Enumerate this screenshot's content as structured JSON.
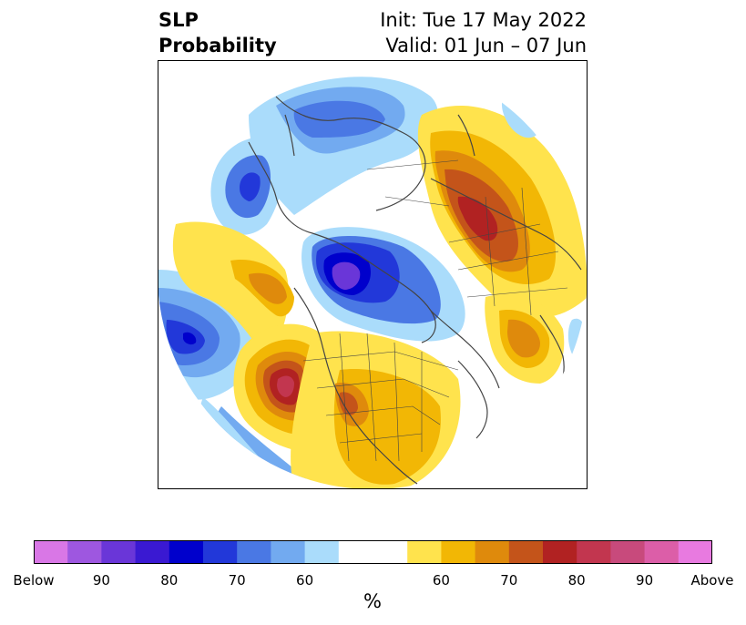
{
  "title": {
    "left_line1": "SLP",
    "left_line2": "Probability",
    "right_line1": "Init: Tue 17 May 2022",
    "right_line2": "Valid: 01 Jun – 07 Jun"
  },
  "colorbar": {
    "colors": [
      "#d977e6",
      "#9e57e0",
      "#6a36d8",
      "#3a19d2",
      "#0000cc",
      "#2238d9",
      "#4a78e4",
      "#72aaf0",
      "#aadcfb",
      "#ffffff",
      "#ffe34d",
      "#f2b705",
      "#df8a0c",
      "#c4541a",
      "#b12222",
      "#c2364f",
      "#c84a7c",
      "#dc5ea8",
      "#e87ae0"
    ],
    "tick_labels": [
      "Below",
      "90",
      "80",
      "70",
      "60",
      "60",
      "70",
      "80",
      "90",
      "Above"
    ],
    "unit_label": "%"
  },
  "map": {
    "colors": {
      "ocean_white": "#ffffff",
      "coast": "#444444"
    }
  }
}
